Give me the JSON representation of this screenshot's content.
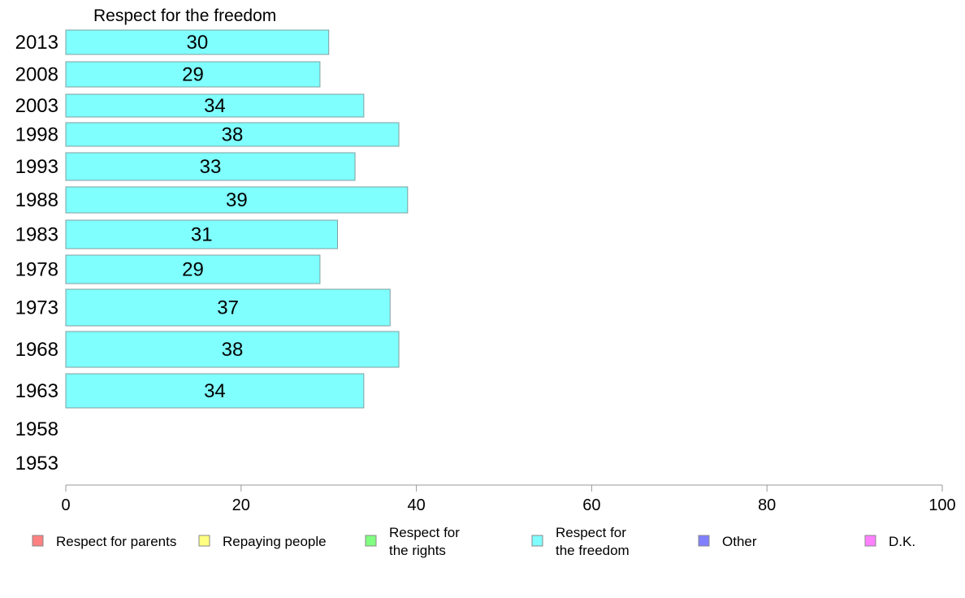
{
  "chart_data": {
    "type": "bar",
    "orientation": "horizontal",
    "title": "Respect for the freedom",
    "categories": [
      "2013",
      "2008",
      "2003",
      "1998",
      "1993",
      "1988",
      "1983",
      "1978",
      "1973",
      "1968",
      "1963",
      "1958",
      "1953"
    ],
    "series": [
      {
        "name": "Respect for the freedom",
        "color": "#80ffff",
        "values": [
          30,
          29,
          34,
          38,
          33,
          39,
          31,
          29,
          37,
          38,
          34,
          null,
          null
        ],
        "labels": [
          "30",
          "29",
          "34",
          "38",
          "33",
          "39",
          "31",
          "29",
          "37",
          "38",
          "34",
          "",
          ""
        ]
      }
    ],
    "xlim": [
      0,
      100
    ],
    "xticks": [
      "0",
      "20",
      "40",
      "60",
      "80",
      "100"
    ],
    "legend": {
      "placement": "bottom",
      "items": [
        {
          "lines": [
            "Respect for parents"
          ],
          "color": "#ff8080"
        },
        {
          "lines": [
            "Repaying people"
          ],
          "color": "#ffff80"
        },
        {
          "lines": [
            "Respect for",
            "the rights"
          ],
          "color": "#80ff80"
        },
        {
          "lines": [
            "Respect for",
            "the freedom"
          ],
          "color": "#80ffff"
        },
        {
          "lines": [
            "Other"
          ],
          "color": "#8080ff"
        },
        {
          "lines": [
            "D.K."
          ],
          "color": "#ff80ff"
        }
      ]
    }
  }
}
